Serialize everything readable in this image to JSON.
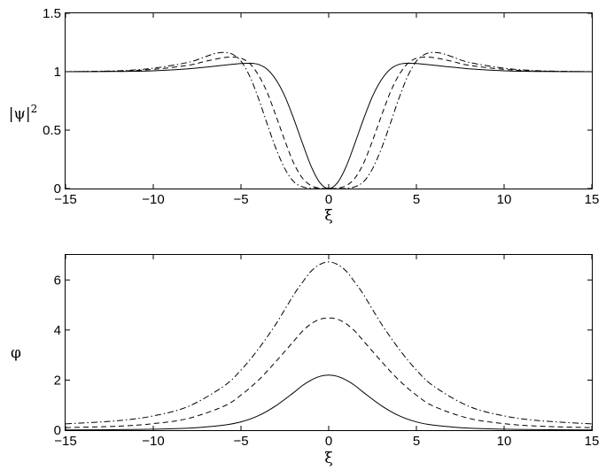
{
  "chart_data": [
    {
      "type": "line",
      "title": "",
      "xlabel": "ξ",
      "ylabel": "|ψ|",
      "ylabel_sup": "2",
      "xlim": [
        -15,
        15
      ],
      "ylim": [
        0,
        1.5
      ],
      "xticks": [
        "−15",
        "−10",
        "−5",
        "0",
        "5",
        "10",
        "15"
      ],
      "yticks": [
        "0",
        "0.5",
        "1",
        "1.5"
      ],
      "grid": false,
      "series": [
        {
          "style": "solid",
          "x": [
            -15,
            -12,
            -10,
            -8,
            -6,
            -5,
            -4.5,
            -4,
            -3.5,
            -3,
            -2.5,
            -2,
            -1.5,
            -1,
            -0.5,
            0,
            0.5,
            1,
            1.5,
            2,
            2.5,
            3,
            3.5,
            4,
            4.5,
            5,
            6,
            8,
            10,
            12,
            15
          ],
          "y": [
            1.0,
            1.002,
            1.008,
            1.025,
            1.055,
            1.07,
            1.072,
            1.062,
            1.02,
            0.93,
            0.79,
            0.6,
            0.39,
            0.19,
            0.05,
            0.0,
            0.05,
            0.19,
            0.39,
            0.6,
            0.79,
            0.93,
            1.02,
            1.062,
            1.072,
            1.07,
            1.055,
            1.025,
            1.008,
            1.002,
            1.0
          ]
        },
        {
          "style": "dashed",
          "x": [
            -15,
            -12,
            -10,
            -8,
            -7,
            -6,
            -5.5,
            -5,
            -4.5,
            -4,
            -3.5,
            -3,
            -2.5,
            -2,
            -1.5,
            -1,
            -0.5,
            0,
            0.5,
            1,
            1.5,
            2,
            2.5,
            3,
            3.5,
            4,
            4.5,
            5,
            5.5,
            6,
            7,
            8,
            10,
            12,
            15
          ],
          "y": [
            1.0,
            1.005,
            1.02,
            1.055,
            1.09,
            1.12,
            1.125,
            1.115,
            1.07,
            0.97,
            0.82,
            0.62,
            0.41,
            0.22,
            0.09,
            0.025,
            0.003,
            0.0,
            0.003,
            0.025,
            0.09,
            0.22,
            0.41,
            0.62,
            0.82,
            0.97,
            1.07,
            1.115,
            1.125,
            1.12,
            1.09,
            1.055,
            1.02,
            1.005,
            1.0
          ]
        },
        {
          "style": "dashdot",
          "x": [
            -15,
            -12,
            -10,
            -8,
            -7,
            -6.5,
            -6,
            -5.5,
            -5,
            -4.5,
            -4,
            -3.5,
            -3,
            -2.5,
            -2,
            -1.5,
            -1,
            -0.5,
            0,
            0.5,
            1,
            1.5,
            2,
            2.5,
            3,
            3.5,
            4,
            4.5,
            5,
            5.5,
            6,
            6.5,
            7,
            8,
            10,
            12,
            15
          ],
          "y": [
            1.0,
            1.008,
            1.03,
            1.08,
            1.13,
            1.155,
            1.165,
            1.15,
            1.09,
            0.96,
            0.77,
            0.55,
            0.34,
            0.17,
            0.06,
            0.015,
            0.002,
            0.0,
            0.0,
            0.0,
            0.002,
            0.015,
            0.06,
            0.17,
            0.34,
            0.55,
            0.77,
            0.96,
            1.09,
            1.15,
            1.165,
            1.155,
            1.13,
            1.08,
            1.03,
            1.008,
            1.0
          ]
        }
      ]
    },
    {
      "type": "line",
      "title": "",
      "xlabel": "ξ",
      "ylabel": "φ",
      "xlim": [
        -15,
        15
      ],
      "ylim": [
        0,
        7
      ],
      "xticks": [
        "−15",
        "−10",
        "−5",
        "0",
        "5",
        "10",
        "15"
      ],
      "yticks": [
        "0",
        "2",
        "4",
        "6"
      ],
      "grid": false,
      "series": [
        {
          "style": "solid",
          "x": [
            -15,
            -12,
            -10,
            -8,
            -6,
            -5,
            -4,
            -3,
            -2,
            -1.5,
            -1,
            -0.5,
            0,
            0.5,
            1,
            1.5,
            2,
            3,
            4,
            5,
            6,
            8,
            10,
            12,
            15
          ],
          "y": [
            0.01,
            0.02,
            0.04,
            0.08,
            0.2,
            0.33,
            0.58,
            0.98,
            1.5,
            1.78,
            2.0,
            2.15,
            2.2,
            2.15,
            2.0,
            1.78,
            1.5,
            0.98,
            0.58,
            0.33,
            0.2,
            0.08,
            0.04,
            0.02,
            0.01
          ]
        },
        {
          "style": "dashed",
          "x": [
            -15,
            -12,
            -10,
            -8,
            -6,
            -5,
            -4,
            -3,
            -2,
            -1.5,
            -1,
            -0.5,
            0,
            0.5,
            1,
            1.5,
            2,
            3,
            4,
            5,
            6,
            8,
            10,
            12,
            15
          ],
          "y": [
            0.1,
            0.16,
            0.26,
            0.47,
            0.95,
            1.4,
            2.0,
            2.75,
            3.55,
            3.95,
            4.25,
            4.43,
            4.48,
            4.43,
            4.25,
            3.95,
            3.55,
            2.75,
            2.0,
            1.4,
            0.95,
            0.47,
            0.26,
            0.16,
            0.1
          ]
        },
        {
          "style": "dashdot",
          "x": [
            -15,
            -12,
            -10,
            -8,
            -6,
            -5,
            -4,
            -3,
            -2,
            -1.5,
            -1,
            -0.5,
            0,
            0.5,
            1,
            1.5,
            2,
            3,
            4,
            5,
            6,
            8,
            10,
            12,
            15
          ],
          "y": [
            0.25,
            0.38,
            0.57,
            0.95,
            1.75,
            2.4,
            3.25,
            4.25,
            5.4,
            5.9,
            6.35,
            6.62,
            6.72,
            6.62,
            6.35,
            5.9,
            5.4,
            4.25,
            3.25,
            2.4,
            1.75,
            0.95,
            0.57,
            0.38,
            0.25
          ]
        }
      ]
    }
  ]
}
